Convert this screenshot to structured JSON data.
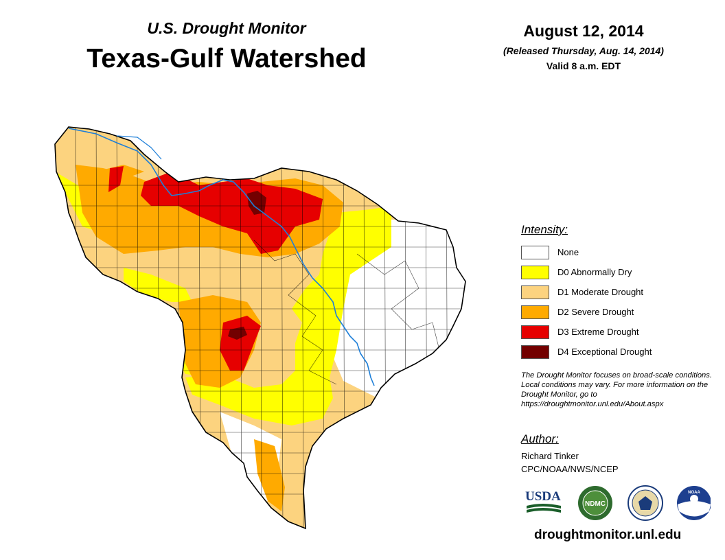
{
  "header": {
    "subtitle": "U.S. Drought Monitor",
    "title": "Texas-Gulf Watershed",
    "date": "August 12, 2014",
    "released": "(Released Thursday, Aug. 14, 2014)",
    "valid": "Valid 8 a.m. EDT"
  },
  "legend": {
    "heading": "Intensity:",
    "items": [
      {
        "label": "None",
        "color": "#ffffff"
      },
      {
        "label": "D0 Abnormally Dry",
        "color": "#ffff00"
      },
      {
        "label": "D1 Moderate Drought",
        "color": "#fcd37f"
      },
      {
        "label": "D2 Severe Drought",
        "color": "#ffaa00"
      },
      {
        "label": "D3 Extreme Drought",
        "color": "#e60000"
      },
      {
        "label": "D4 Exceptional Drought",
        "color": "#730000"
      }
    ]
  },
  "note": {
    "text": "The Drought Monitor focuses on broad-scale conditions. Local conditions may vary. For more information on the Drought Monitor, go to https://droughtmonitor.unl.edu/About.aspx"
  },
  "author": {
    "heading": "Author:",
    "name": "Richard Tinker",
    "org": "CPC/NOAA/NWS/NCEP"
  },
  "logos": {
    "usda": "USDA",
    "ndmc": "NDMC",
    "noaa": "NOAA"
  },
  "footer": {
    "url": "droughtmonitor.unl.edu"
  },
  "colors": {
    "river": "#1e7fd8",
    "border": "#000000"
  }
}
